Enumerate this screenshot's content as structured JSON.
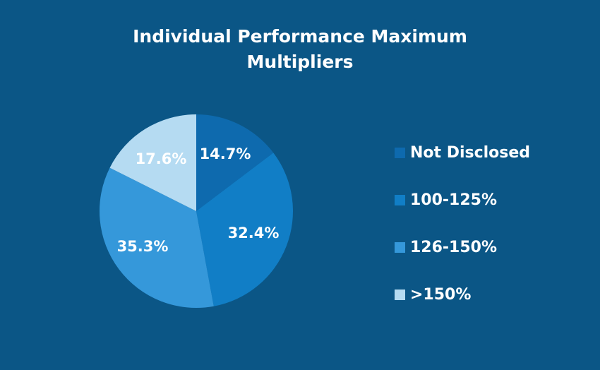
{
  "chart_data": {
    "type": "pie",
    "title": "Individual Performance Maximum Multipliers",
    "title_lines": [
      "Individual Performance Maximum",
      "Multipliers"
    ],
    "categories": [
      "Not Disclosed",
      "100-125%",
      "126-150%",
      ">150%"
    ],
    "values": [
      14.7,
      32.4,
      35.3,
      17.6
    ],
    "labels": [
      "14.7%",
      "32.4%",
      "35.3%",
      "17.6%"
    ],
    "colors": [
      "#0e6aae",
      "#117ec6",
      "#3598da",
      "#b5dbf2"
    ],
    "label_colors": [
      "#ffffff",
      "#ffffff",
      "#ffffff",
      "#ffffff"
    ],
    "start_angle": "top",
    "direction": "clockwise",
    "legend_position": "right"
  },
  "colors": {
    "background": "#0b5686",
    "text": "#ffffff"
  }
}
